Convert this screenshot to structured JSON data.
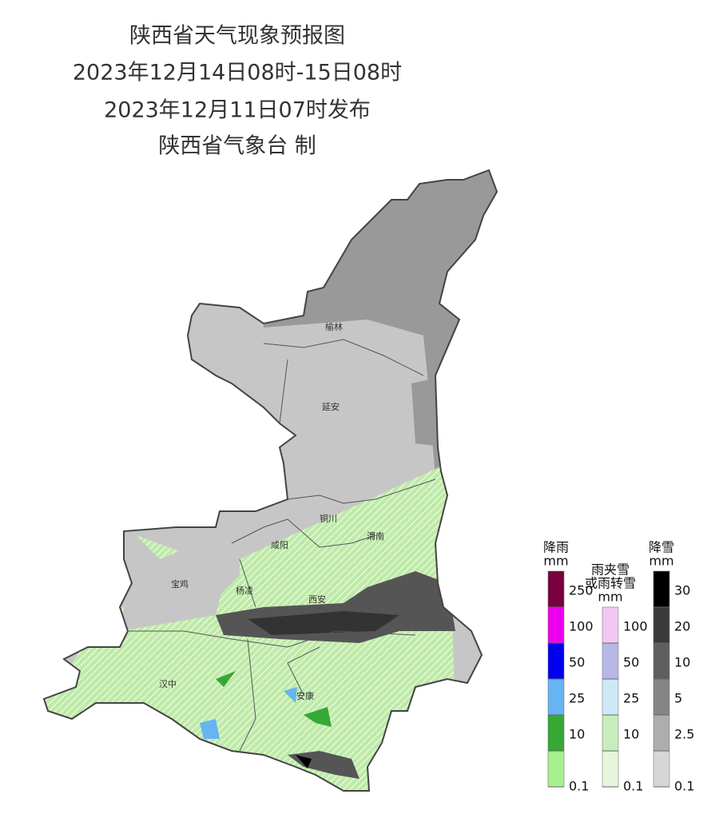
{
  "header": {
    "title": "陕西省天气现象预报图",
    "period": "2023年12月14日08时-15日08时",
    "issued": "2023年12月11日07时发布",
    "issuer": "陕西省气象台 制"
  },
  "cities": [
    "榆林",
    "延安",
    "铜川",
    "渭南",
    "咸阳",
    "宝鸡",
    "杨凌",
    "西安",
    "汉中",
    "安康"
  ],
  "legend": {
    "rain": {
      "title": [
        "降雨",
        "mm"
      ],
      "ticks": [
        0.1,
        10,
        25,
        50,
        100,
        250
      ],
      "colors": [
        "#a8ef90",
        "#36a836",
        "#66b4f2",
        "#0000ee",
        "#ee00ee",
        "#7a0040"
      ]
    },
    "sleet": {
      "title": [
        "雨夹雪",
        "或雨转雪",
        "mm"
      ],
      "ticks": [
        0.1,
        10,
        25,
        50,
        100
      ],
      "colors": [
        "#e4f6dc",
        "#c8ecbc",
        "#cfe8f6",
        "#b8b8e6",
        "#f2c8f2"
      ]
    },
    "snow": {
      "title": [
        "降雪",
        "mm"
      ],
      "ticks": [
        0.1,
        2.5,
        5,
        10,
        20,
        30
      ],
      "colors": [
        "#d6d6d6",
        "#adadad",
        "#858585",
        "#5e5e5e",
        "#3a3a3a",
        "#000000"
      ]
    }
  }
}
